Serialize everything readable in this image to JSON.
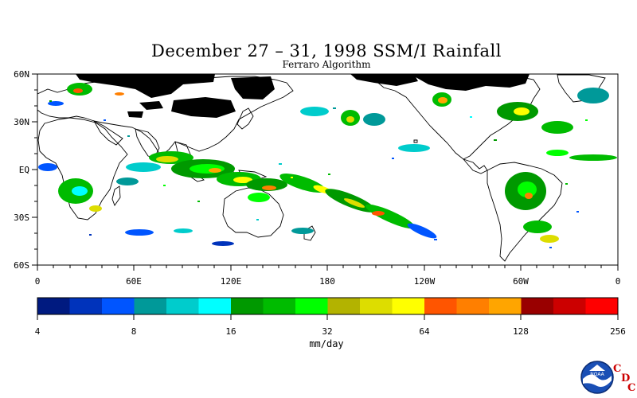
{
  "title": "December 27 – 31, 1998 SSM/I Rainfall",
  "subtitle": "Ferraro Algorithm",
  "lat_labels": [
    "60N",
    "30N",
    "EQ",
    "30S",
    "60S"
  ],
  "lon_labels": [
    "0",
    "60E",
    "120E",
    "180",
    "120W",
    "60W",
    "0"
  ],
  "colorbar": {
    "colors": [
      "#001a80",
      "#0033bb",
      "#0055ff",
      "#009999",
      "#00cccc",
      "#00ffff",
      "#009900",
      "#00bb00",
      "#00ff00",
      "#b3b300",
      "#dddd00",
      "#ffff00",
      "#ff5500",
      "#ff7f00",
      "#ffa500",
      "#990000",
      "#cc0000",
      "#ff0000"
    ],
    "tick_labels": [
      "4",
      "8",
      "16",
      "32",
      "64",
      "128",
      "256"
    ],
    "units": "mm/day"
  },
  "logo": {
    "text": "NOAA",
    "letters": [
      "C",
      "D",
      "C"
    ]
  },
  "chart_data": {
    "type": "heatmap",
    "title": "December 27 – 31, 1998 SSM/I Rainfall",
    "subtitle": "Ferraro Algorithm",
    "xlabel": "",
    "ylabel": "",
    "x_ticks": [
      "0",
      "60E",
      "120E",
      "180",
      "120W",
      "60W",
      "0"
    ],
    "y_ticks": [
      "60N",
      "30N",
      "EQ",
      "30S",
      "60S"
    ],
    "xlim": [
      0,
      360
    ],
    "ylim": [
      -60,
      60
    ],
    "color_scale": "log",
    "scale_values": [
      4,
      8,
      16,
      32,
      64,
      128,
      256
    ],
    "units": "mm/day"
  }
}
